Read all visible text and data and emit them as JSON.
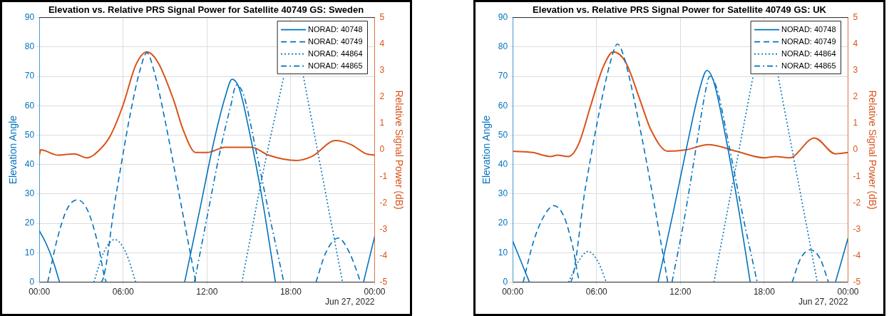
{
  "chart_data": [
    {
      "type": "line",
      "title": "Elevation vs. Relative PRS Signal Power for Satellite 40749 GS: Sweden",
      "ylabel": "Elevation Angle",
      "y2label": "Relative Signal Power (dB)",
      "annotations": [
        "Jun 27, 2022"
      ],
      "xlim": [
        0,
        24
      ],
      "xticks": [
        {
          "value": 0,
          "label": "00:00"
        },
        {
          "value": 6,
          "label": "06:00"
        },
        {
          "value": 12,
          "label": "12:00"
        },
        {
          "value": 18,
          "label": "18:00"
        },
        {
          "value": 24,
          "label": "00:00"
        }
      ],
      "ylim": [
        0,
        90
      ],
      "yticks": [
        0,
        10,
        20,
        30,
        40,
        50,
        60,
        70,
        80,
        90
      ],
      "y2lim": [
        -5,
        5
      ],
      "y2ticks": [
        -5,
        -4,
        -3,
        -2,
        -1,
        0,
        1,
        2,
        3,
        4,
        5
      ],
      "grid": true,
      "legend": "top right",
      "marker": "none",
      "series": [
        {
          "name": "NORAD: 40748",
          "color": "#0072bd",
          "line_style": "solid",
          "x": [
            0,
            0.5,
            1,
            1.45,
            1.46,
            10.4,
            11.5,
            12.5,
            13.3,
            13.8,
            14.3,
            15,
            16,
            16.9,
            17,
            23.2,
            24
          ],
          "values": [
            17.5,
            13,
            7,
            0,
            null,
            0,
            25,
            48,
            63,
            69,
            66,
            52,
            27,
            0,
            null,
            0,
            15.5
          ]
        },
        {
          "name": "NORAD: 40749",
          "color": "#0072bd",
          "line_style": "dashed",
          "x": [
            0.6,
            1.3,
            2,
            2.74,
            3.5,
            4.2,
            4.84,
            4.4,
            5.5,
            6.5,
            7.2,
            7.7,
            8.2,
            9,
            10,
            11.2,
            11.3,
            19.8,
            20.5,
            21.4,
            22.2,
            23
          ],
          "values": [
            0,
            15,
            25,
            28,
            24,
            13,
            0,
            0,
            30,
            57,
            72,
            78,
            72,
            55,
            30,
            0,
            null,
            0,
            10,
            15,
            10,
            0
          ]
        },
        {
          "name": "NORAD: 44864",
          "color": "#0072bd",
          "line_style": "dotted",
          "x": [
            3.9,
            4.6,
            5.4,
            6.2,
            6.9,
            7,
            14.5,
            16,
            17.5,
            18.2,
            18.9,
            20.3,
            21.7
          ],
          "values": [
            0,
            10,
            14.5,
            10,
            0,
            null,
            0,
            37,
            70,
            null,
            70,
            35,
            0
          ]
        },
        {
          "name": "NORAD: 44865",
          "color": "#0072bd",
          "line_style": "dashdot",
          "x": [
            11.1,
            12,
            13,
            13.7,
            14.1,
            14.6,
            15.5,
            16.5,
            17.5
          ],
          "values": [
            0,
            22,
            46,
            60,
            67,
            64,
            45,
            22,
            0
          ]
        },
        {
          "color": "#d95319",
          "axis": "y2",
          "line_style": "solid",
          "x": [
            0,
            0.1,
            1.35,
            2.5,
            3.4,
            4.4,
            5.1,
            6,
            6.9,
            7.7,
            8.5,
            9.6,
            10.3,
            11.2,
            12,
            13.3,
            15.2,
            16.4,
            18.4,
            19.5,
            21.2,
            22.3,
            23.4,
            24
          ],
          "values": [
            -0.2,
            0,
            -0.2,
            -0.15,
            -0.3,
            0.05,
            0.55,
            1.7,
            3.2,
            3.7,
            3.3,
            1.9,
            0.75,
            -0.1,
            -0.1,
            0.1,
            0.1,
            -0.2,
            -0.4,
            -0.25,
            0.35,
            0.2,
            -0.15,
            -0.2
          ]
        }
      ]
    },
    {
      "type": "line",
      "title": "Elevation vs. Relative PRS Signal Power for Satellite 40749 GS: UK",
      "ylabel": "Elevation Angle",
      "y2label": "Relative Signal Power (dB)",
      "annotations": [
        "Jun 27, 2022"
      ],
      "xlim": [
        0,
        24
      ],
      "xticks": [
        {
          "value": 0,
          "label": "00:00"
        },
        {
          "value": 6,
          "label": "06:00"
        },
        {
          "value": 12,
          "label": "12:00"
        },
        {
          "value": 18,
          "label": "18:00"
        },
        {
          "value": 24,
          "label": "00:00"
        }
      ],
      "ylim": [
        0,
        90
      ],
      "yticks": [
        0,
        10,
        20,
        30,
        40,
        50,
        60,
        70,
        80,
        90
      ],
      "y2lim": [
        -5,
        5
      ],
      "y2ticks": [
        -5,
        -4,
        -3,
        -2,
        -1,
        0,
        1,
        2,
        3,
        4,
        5
      ],
      "grid": true,
      "legend": "top right",
      "marker": "none",
      "series": [
        {
          "name": "NORAD: 40748",
          "color": "#0072bd",
          "line_style": "solid",
          "x": [
            0,
            0.6,
            1.2,
            1.3,
            10.4,
            11.5,
            12.5,
            13.4,
            13.9,
            14.4,
            15.3,
            16.2,
            17,
            17.1,
            23.1,
            24
          ],
          "values": [
            14,
            7,
            0,
            null,
            0,
            24,
            47,
            66,
            72,
            68,
            48,
            24,
            0,
            null,
            0,
            15
          ]
        },
        {
          "name": "NORAD: 40749",
          "color": "#0072bd",
          "line_style": "dashed",
          "x": [
            0.75,
            1.5,
            2.3,
            2.95,
            3.7,
            4.3,
            4.85,
            4.1,
            5.2,
            6.2,
            7,
            7.5,
            8,
            9,
            10,
            11.1,
            11.2,
            20,
            20.6,
            21.3,
            22,
            22.6
          ],
          "values": [
            0,
            14,
            23,
            26,
            22,
            12,
            0,
            0,
            32,
            58,
            75,
            81,
            76,
            55,
            30,
            0,
            null,
            0,
            8,
            11,
            8,
            0
          ]
        },
        {
          "name": "NORAD: 44864",
          "color": "#0072bd",
          "line_style": "dotted",
          "x": [
            4,
            4.7,
            5.4,
            6.1,
            6.7,
            6.8,
            14.4,
            15.8,
            17.2,
            18,
            19,
            20.4,
            21.8
          ],
          "values": [
            0,
            7,
            10.5,
            7,
            0,
            null,
            0,
            35,
            70,
            null,
            70,
            35,
            0
          ]
        },
        {
          "name": "NORAD: 44865",
          "color": "#0072bd",
          "line_style": "dashdot",
          "x": [
            11.4,
            12.3,
            13.2,
            13.8,
            14.1,
            14.6,
            15.5,
            16.5,
            17.5
          ],
          "values": [
            0,
            22,
            48,
            65,
            70,
            66,
            46,
            22,
            0
          ]
        },
        {
          "color": "#d95319",
          "axis": "y2",
          "line_style": "solid",
          "x": [
            0,
            1.45,
            2.7,
            3.2,
            4,
            4.7,
            5.6,
            6.45,
            7.2,
            8.1,
            9.1,
            9.9,
            11.1,
            12.4,
            14,
            16,
            18,
            18.8,
            19.8,
            21.6,
            23.1,
            24
          ],
          "values": [
            -0.05,
            -0.1,
            -0.25,
            -0.2,
            -0.25,
            0.2,
            1.7,
            3.1,
            3.7,
            3.3,
            1.9,
            0.75,
            -0.05,
            0,
            0.2,
            -0.05,
            -0.3,
            -0.25,
            -0.3,
            0.45,
            -0.15,
            -0.1
          ]
        }
      ]
    }
  ]
}
